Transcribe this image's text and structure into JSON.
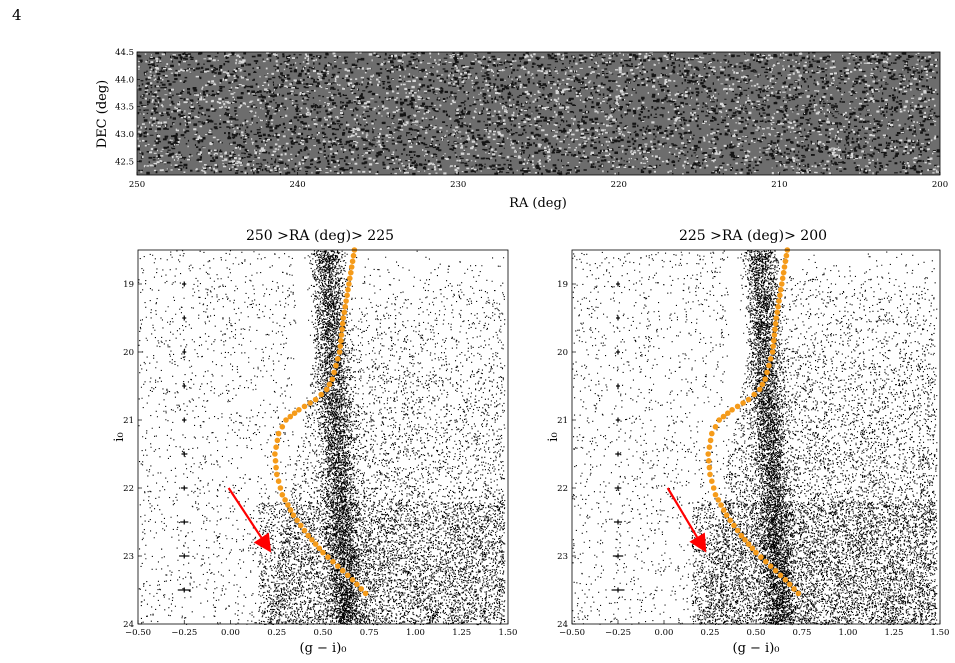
{
  "page": {
    "number": "4"
  },
  "sky_map": {
    "xlabel": "RA (deg)",
    "ylabel": "DEC (deg)",
    "xticks": [
      "250",
      "240",
      "230",
      "220",
      "210",
      "200"
    ],
    "yticks": [
      "44.5",
      "44.0",
      "43.5",
      "43.0",
      "42.5"
    ]
  },
  "cmd_left": {
    "title": "250 >RA (deg)> 225",
    "xlabel": "(g − i)₀",
    "ylabel": "i₀",
    "xticks": [
      "−0.50",
      "−0.25",
      "0.00",
      "0.25",
      "0.50",
      "0.75",
      "1.00",
      "1.25",
      "1.50"
    ],
    "yticks": [
      "19",
      "20",
      "21",
      "22",
      "23",
      "24"
    ]
  },
  "cmd_right": {
    "title": "225 >RA (deg)> 200",
    "xlabel": "(g − i)₀",
    "ylabel": "i₀",
    "xticks": [
      "−0.50",
      "−0.25",
      "0.00",
      "0.25",
      "0.50",
      "0.75",
      "1.00",
      "1.25",
      "1.50"
    ],
    "yticks": [
      "19",
      "20",
      "21",
      "22",
      "23",
      "24"
    ]
  },
  "colors": {
    "isochrone": "#f59b1a",
    "arrow": "#ff0000",
    "points": "#000000"
  },
  "chart_data": [
    {
      "type": "heatmap",
      "title": "",
      "xlabel": "RA (deg)",
      "ylabel": "DEC (deg)",
      "xlim": [
        250,
        200
      ],
      "ylim": [
        42.25,
        44.5
      ],
      "colormap": "grayscale"
    },
    {
      "type": "scatter",
      "title": "250 >RA (deg)> 225",
      "xlabel": "(g − i)₀",
      "ylabel": "i₀",
      "xlim": [
        -0.5,
        1.5
      ],
      "ylim": [
        24,
        18.5
      ],
      "series": [
        {
          "name": "",
          "kind": "isochrone",
          "x": [
            0.67,
            0.64,
            0.61,
            0.59,
            0.57,
            0.55,
            0.52,
            0.46,
            0.37,
            0.3,
            0.26,
            0.24,
            0.25,
            0.28,
            0.34,
            0.42,
            0.5,
            0.58,
            0.66,
            0.73
          ],
          "y": [
            18.5,
            19.0,
            19.5,
            20.0,
            20.2,
            20.4,
            20.55,
            20.7,
            20.85,
            21.0,
            21.2,
            21.5,
            21.8,
            22.1,
            22.4,
            22.7,
            22.95,
            23.15,
            23.35,
            23.55
          ]
        },
        {
          "name": "",
          "kind": "error_bars",
          "x": [
            -0.25,
            -0.25,
            -0.25,
            -0.25,
            -0.25,
            -0.25,
            -0.25,
            -0.25,
            -0.25,
            -0.25
          ],
          "y": [
            19.0,
            19.5,
            20.0,
            20.5,
            21.0,
            21.5,
            22.0,
            22.5,
            23.0,
            23.5
          ],
          "xerr": [
            0.005,
            0.006,
            0.008,
            0.01,
            0.012,
            0.015,
            0.018,
            0.022,
            0.028,
            0.035
          ]
        }
      ],
      "arrow": {
        "from": [
          -0.01,
          22.0
        ],
        "to": [
          0.22,
          22.95
        ]
      }
    },
    {
      "type": "scatter",
      "title": "225 >RA (deg)> 200",
      "xlabel": "(g − i)₀",
      "ylabel": "i₀",
      "xlim": [
        -0.5,
        1.5
      ],
      "ylim": [
        24,
        18.5
      ],
      "series": [
        {
          "name": "",
          "kind": "isochrone",
          "x": [
            0.67,
            0.64,
            0.61,
            0.59,
            0.57,
            0.55,
            0.52,
            0.46,
            0.37,
            0.3,
            0.26,
            0.24,
            0.25,
            0.28,
            0.34,
            0.42,
            0.5,
            0.58,
            0.66,
            0.73
          ],
          "y": [
            18.5,
            19.0,
            19.5,
            20.0,
            20.2,
            20.4,
            20.55,
            20.7,
            20.85,
            21.0,
            21.2,
            21.5,
            21.8,
            22.1,
            22.4,
            22.7,
            22.95,
            23.15,
            23.35,
            23.55
          ]
        },
        {
          "name": "",
          "kind": "error_bars",
          "x": [
            -0.25,
            -0.25,
            -0.25,
            -0.25,
            -0.25,
            -0.25,
            -0.25,
            -0.25,
            -0.25,
            -0.25
          ],
          "y": [
            19.0,
            19.5,
            20.0,
            20.5,
            21.0,
            21.5,
            22.0,
            22.5,
            23.0,
            23.5
          ],
          "xerr": [
            0.005,
            0.006,
            0.008,
            0.01,
            0.012,
            0.015,
            0.018,
            0.022,
            0.028,
            0.035
          ]
        }
      ],
      "arrow": {
        "from": [
          0.02,
          22.0
        ],
        "to": [
          0.23,
          22.95
        ]
      }
    }
  ]
}
